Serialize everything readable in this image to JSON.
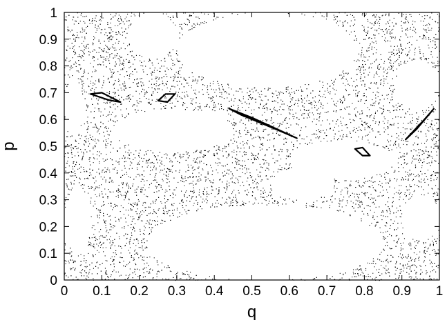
{
  "chart_data": {
    "type": "scatter",
    "title": "",
    "xlabel": "q",
    "ylabel": "p",
    "xlim": [
      0,
      1
    ],
    "ylim": [
      0,
      1
    ],
    "xticks": [
      "0",
      "0.1",
      "0.2",
      "0.3",
      "0.4",
      "0.5",
      "0.6",
      "0.7",
      "0.8",
      "0.9",
      "1"
    ],
    "yticks": [
      "0",
      "0.1",
      "0.2",
      "0.3",
      "0.4",
      "0.5",
      "0.6",
      "0.7",
      "0.8",
      "0.9",
      "1"
    ],
    "grid": false,
    "legend": "none",
    "point_color": "#000000",
    "series": [
      {
        "kind": "chaotic-sea",
        "note_points": "dense scatter of orbit points filling region except white islands",
        "empty_regions": [
          {
            "q": [
              0.0,
              0.05
            ],
            "p": [
              0.55,
              0.75
            ]
          },
          {
            "q": [
              0.17,
              0.3
            ],
            "p": [
              0.83,
              1.0
            ]
          },
          {
            "q": [
              0.3,
              0.78
            ],
            "p": [
              0.72,
              1.0
            ]
          },
          {
            "q": [
              0.22,
              0.85
            ],
            "p": [
              0.0,
              0.28
            ]
          },
          {
            "q": [
              0.0,
              0.07
            ],
            "p": [
              0.1,
              0.35
            ]
          },
          {
            "q": [
              0.13,
              0.45
            ],
            "p": [
              0.48,
              0.64
            ]
          },
          {
            "q": [
              0.6,
              0.88
            ],
            "p": [
              0.38,
              0.52
            ]
          },
          {
            "q": [
              0.9,
              1.0
            ],
            "p": [
              0.15,
              0.32
            ]
          },
          {
            "q": [
              0.88,
              1.0
            ],
            "p": [
              0.64,
              0.82
            ]
          },
          {
            "q": [
              0.55,
              0.72
            ],
            "p": [
              0.3,
              0.42
            ]
          }
        ]
      }
    ],
    "islands": [
      {
        "name": "",
        "points": [
          [
            0.07,
            0.695
          ],
          [
            0.1,
            0.7
          ],
          [
            0.15,
            0.665
          ],
          [
            0.12,
            0.672
          ]
        ]
      },
      {
        "name": "",
        "points": [
          [
            0.25,
            0.67
          ],
          [
            0.27,
            0.695
          ],
          [
            0.295,
            0.695
          ],
          [
            0.275,
            0.665
          ]
        ]
      },
      {
        "name": "",
        "points": [
          [
            0.44,
            0.64
          ],
          [
            0.5,
            0.607
          ],
          [
            0.62,
            0.53
          ],
          [
            0.57,
            0.56
          ],
          [
            0.47,
            0.618
          ]
        ]
      },
      {
        "name": "",
        "points": [
          [
            0.775,
            0.49
          ],
          [
            0.795,
            0.495
          ],
          [
            0.815,
            0.465
          ],
          [
            0.795,
            0.465
          ]
        ]
      },
      {
        "name": "",
        "points": [
          [
            0.91,
            0.525
          ],
          [
            0.94,
            0.565
          ],
          [
            0.985,
            0.64
          ],
          [
            0.96,
            0.6
          ]
        ]
      }
    ]
  }
}
